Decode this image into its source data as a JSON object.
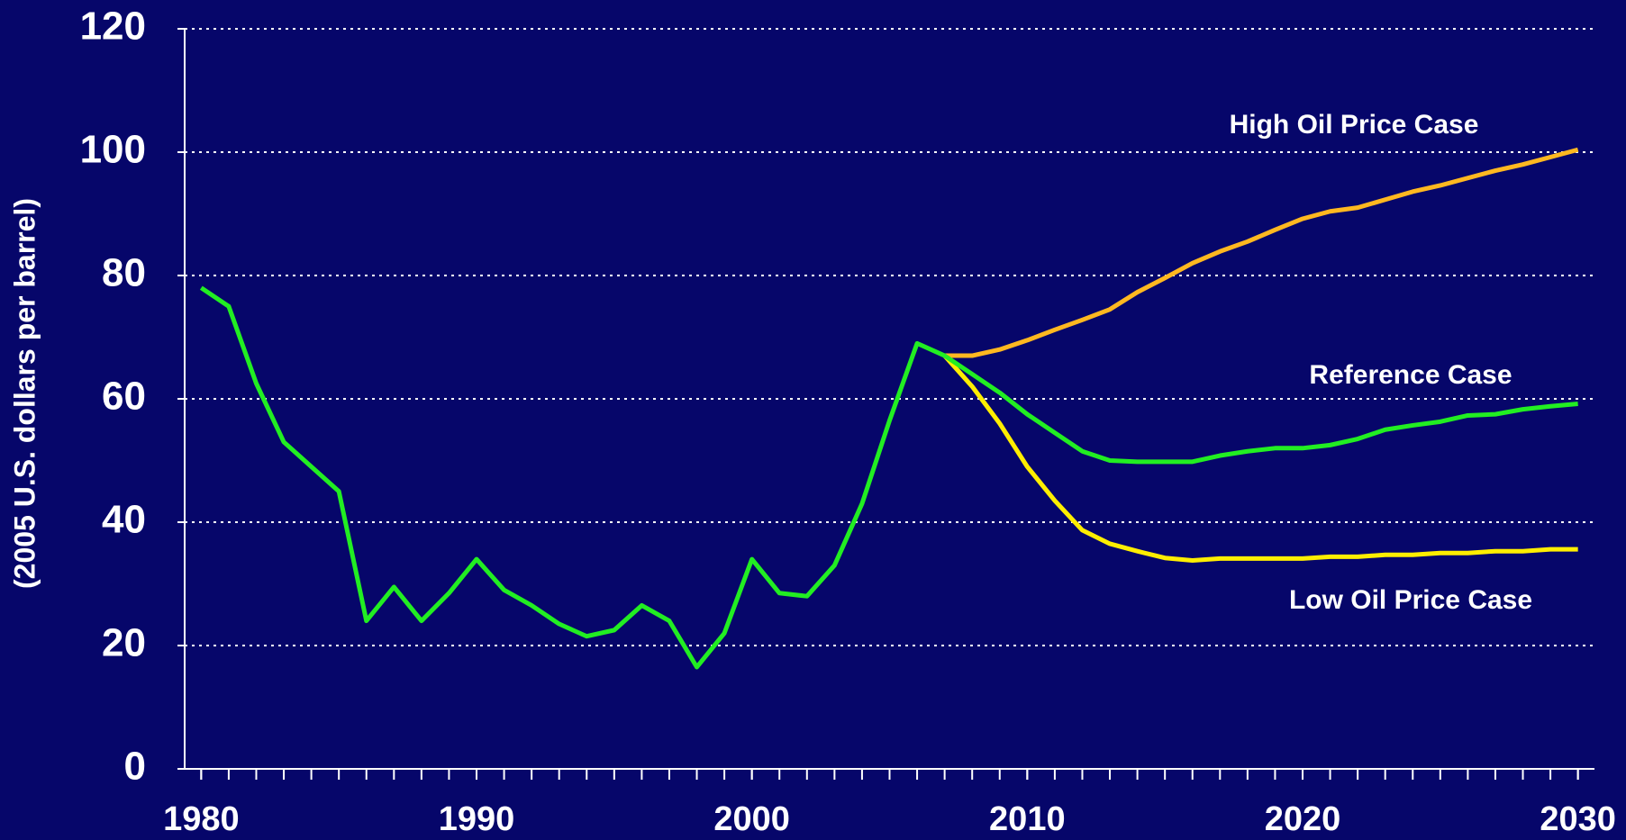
{
  "chart_data": {
    "type": "line",
    "y_label": "(2005 U.S. dollars per barrel)",
    "x": [
      1980,
      1981,
      1982,
      1983,
      1984,
      1985,
      1986,
      1987,
      1988,
      1989,
      1990,
      1991,
      1992,
      1993,
      1994,
      1995,
      1996,
      1997,
      1998,
      1999,
      2000,
      2001,
      2002,
      2003,
      2004,
      2005,
      2006,
      2007,
      2008,
      2009,
      2010,
      2011,
      2012,
      2013,
      2014,
      2015,
      2016,
      2017,
      2018,
      2019,
      2020,
      2021,
      2022,
      2023,
      2024,
      2025,
      2026,
      2027,
      2028,
      2029,
      2030
    ],
    "series": [
      {
        "name": "Reference Case",
        "color": "#22ee22",
        "values": [
          78,
          75,
          62.5,
          53,
          49,
          45,
          24,
          29.5,
          24,
          28.5,
          34,
          29,
          26.5,
          23.5,
          21.5,
          22.5,
          26.5,
          24,
          16.5,
          22,
          34,
          28.5,
          28,
          33,
          43,
          56.5,
          69,
          67,
          64,
          61,
          57.5,
          54.5,
          51.5,
          50,
          49.8,
          49.8,
          49.8,
          50.8,
          51.5,
          52,
          52,
          52.5,
          53.5,
          55,
          55.7,
          56.3,
          57.3,
          57.5,
          58.3,
          58.8,
          59.2
        ]
      },
      {
        "name": "High Oil Price Case",
        "color": "#ffb820",
        "values": [
          null,
          null,
          null,
          null,
          null,
          null,
          null,
          null,
          null,
          null,
          null,
          null,
          null,
          null,
          null,
          null,
          null,
          null,
          null,
          null,
          null,
          null,
          null,
          null,
          null,
          null,
          null,
          67,
          67,
          68,
          69.5,
          71.2,
          72.8,
          74.5,
          77.3,
          79.6,
          82,
          83.9,
          85.5,
          87.4,
          89.2,
          90.4,
          91,
          92.3,
          93.6,
          94.6,
          95.8,
          97,
          98,
          99.2,
          100.4
        ]
      },
      {
        "name": "Low Oil Price Case",
        "color": "#ffee00",
        "values": [
          null,
          null,
          null,
          null,
          null,
          null,
          null,
          null,
          null,
          null,
          null,
          null,
          null,
          null,
          null,
          null,
          null,
          null,
          null,
          null,
          null,
          null,
          null,
          null,
          null,
          null,
          null,
          67,
          62,
          56,
          49,
          43.5,
          38.7,
          36.5,
          35.3,
          34.2,
          33.8,
          34.1,
          34.1,
          34.1,
          34.1,
          34.4,
          34.4,
          34.7,
          34.7,
          35,
          35,
          35.3,
          35.3,
          35.6,
          35.6
        ]
      }
    ],
    "xlim": [
      1979.4,
      2030.6
    ],
    "xticks": [
      1980,
      1990,
      2000,
      2010,
      2020,
      2030
    ],
    "ylim": [
      0,
      120
    ],
    "yticks": [
      0,
      20,
      40,
      60,
      80,
      100,
      120
    ],
    "grid": true
  }
}
